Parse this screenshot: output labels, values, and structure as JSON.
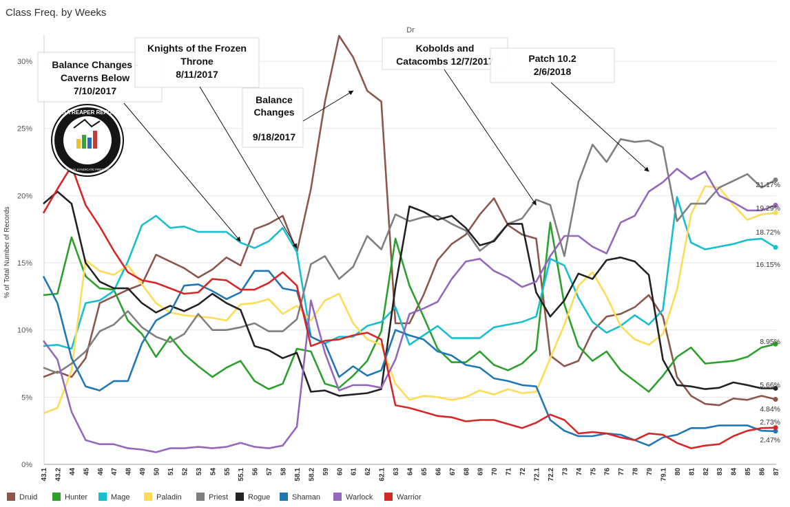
{
  "title": "Class Freq. by Weeks",
  "logo": {
    "text": "DATA REAPER REPORT",
    "subtext": "VICIOUS SYNDICATE PRESENTS"
  },
  "chart_data": {
    "type": "line",
    "title": "Dr",
    "xlabel": "",
    "ylabel": "% of Total Number of Records",
    "ylim": [
      0,
      32
    ],
    "yticks": [
      0,
      5,
      10,
      15,
      20,
      25,
      30
    ],
    "ytick_labels": [
      "0%",
      "5%",
      "10%",
      "15%",
      "20%",
      "25%",
      "30%"
    ],
    "grid": true,
    "legend_position": "bottom",
    "categories": [
      "43.1",
      "43.2",
      "44",
      "45",
      "46",
      "47",
      "48",
      "49",
      "50",
      "51",
      "52",
      "53",
      "54",
      "55",
      "55.1",
      "56",
      "57",
      "58",
      "58.1",
      "58.2",
      "59",
      "60",
      "61",
      "62",
      "62.1",
      "63",
      "64",
      "65",
      "66",
      "67",
      "68",
      "69",
      "70",
      "71",
      "72",
      "72.1",
      "72.2",
      "73",
      "74",
      "75",
      "76",
      "77",
      "78",
      "79",
      "79.1",
      "80",
      "81",
      "82",
      "83",
      "84",
      "85",
      "86",
      "87"
    ],
    "series": [
      {
        "name": "Druid",
        "color": "#8c564b",
        "values": [
          6.5,
          6.9,
          6.5,
          7.9,
          12.0,
          12.5,
          13.0,
          13.4,
          15.6,
          15.1,
          14.6,
          13.9,
          14.5,
          15.4,
          14.8,
          17.5,
          17.9,
          18.5,
          15.8,
          20.5,
          27.0,
          31.9,
          30.3,
          27.8,
          27.0,
          10.5,
          10.5,
          12.6,
          15.2,
          16.4,
          17.1,
          18.6,
          19.8,
          17.8,
          17.1,
          16.8,
          8.1,
          7.3,
          7.7,
          9.9,
          11.0,
          11.2,
          11.7,
          12.6,
          11.0,
          6.5,
          5.1,
          4.5,
          4.4,
          4.9,
          4.8,
          5.1,
          4.84
        ]
      },
      {
        "name": "Hunter",
        "color": "#2ca02c",
        "values": [
          12.6,
          12.7,
          16.9,
          14.0,
          13.1,
          13.0,
          10.7,
          9.7,
          8.0,
          9.5,
          8.2,
          7.3,
          6.5,
          7.2,
          7.7,
          6.2,
          5.6,
          6.0,
          8.6,
          8.4,
          6.0,
          5.7,
          6.6,
          7.7,
          9.9,
          16.8,
          13.3,
          11.0,
          8.6,
          7.6,
          7.6,
          8.4,
          7.4,
          7.0,
          7.5,
          8.5,
          18.0,
          11.9,
          8.8,
          7.7,
          8.4,
          7.0,
          6.2,
          5.4,
          6.6,
          8.0,
          8.7,
          7.5,
          7.6,
          7.7,
          8.0,
          8.7,
          8.95
        ]
      },
      {
        "name": "Mage",
        "color": "#17becf",
        "values": [
          8.8,
          8.9,
          8.6,
          12.0,
          12.2,
          12.9,
          15.1,
          17.8,
          18.5,
          17.6,
          17.7,
          17.3,
          17.3,
          17.3,
          16.5,
          16.1,
          16.6,
          17.6,
          15.8,
          9.5,
          9.0,
          9.5,
          9.5,
          10.3,
          10.6,
          11.7,
          8.9,
          9.6,
          10.3,
          9.4,
          9.4,
          9.4,
          10.2,
          10.4,
          10.6,
          11.0,
          15.3,
          14.8,
          12.4,
          10.6,
          9.8,
          10.3,
          11.1,
          10.4,
          11.5,
          19.9,
          16.5,
          16.0,
          16.2,
          16.4,
          16.7,
          16.8,
          16.15
        ]
      },
      {
        "name": "Paladin",
        "color": "#fedc56",
        "values": [
          3.8,
          4.2,
          7.0,
          15.2,
          14.4,
          14.1,
          14.8,
          13.4,
          12.0,
          11.3,
          11.1,
          11.0,
          10.9,
          10.7,
          11.9,
          12.0,
          12.3,
          11.2,
          11.8,
          10.7,
          12.2,
          12.7,
          10.5,
          9.3,
          8.9,
          6.0,
          4.8,
          5.1,
          5.0,
          4.8,
          5.0,
          5.5,
          5.2,
          5.6,
          5.3,
          5.4,
          7.9,
          10.4,
          13.3,
          14.3,
          12.5,
          10.3,
          9.3,
          8.9,
          9.7,
          13.0,
          18.6,
          20.7,
          20.6,
          19.3,
          18.2,
          18.6,
          18.72
        ]
      },
      {
        "name": "Priest",
        "color": "#7f7f7f",
        "values": [
          7.2,
          6.8,
          7.5,
          8.4,
          9.9,
          10.4,
          11.4,
          10.2,
          9.5,
          9.1,
          9.7,
          11.2,
          10.0,
          10.0,
          10.2,
          10.5,
          9.9,
          9.9,
          10.8,
          14.9,
          15.5,
          13.8,
          14.7,
          17.0,
          16.0,
          18.6,
          18.1,
          18.4,
          18.5,
          17.9,
          17.4,
          15.9,
          16.7,
          17.9,
          18.3,
          19.7,
          19.3,
          15.5,
          21.0,
          23.8,
          22.5,
          24.2,
          24.0,
          24.1,
          23.6,
          18.1,
          19.4,
          19.4,
          20.6,
          21.1,
          21.6,
          20.6,
          21.17
        ]
      },
      {
        "name": "Rogue",
        "color": "#222222",
        "values": [
          19.4,
          20.3,
          19.4,
          15.0,
          13.6,
          13.1,
          13.1,
          12.0,
          11.3,
          11.8,
          11.4,
          11.9,
          12.7,
          12.0,
          11.5,
          8.8,
          8.5,
          7.9,
          8.3,
          5.4,
          5.5,
          5.1,
          5.2,
          5.3,
          5.6,
          13.2,
          19.2,
          18.8,
          18.2,
          18.5,
          17.6,
          16.3,
          16.6,
          17.9,
          17.9,
          12.8,
          11.0,
          12.2,
          14.2,
          13.8,
          15.2,
          15.4,
          15.1,
          14.1,
          7.8,
          5.9,
          5.8,
          5.6,
          5.7,
          6.1,
          5.9,
          5.66,
          5.66
        ]
      },
      {
        "name": "Shaman",
        "color": "#1f77b4",
        "values": [
          14.0,
          12.0,
          7.9,
          5.8,
          5.5,
          6.2,
          6.2,
          9.0,
          10.7,
          11.3,
          13.3,
          13.4,
          12.9,
          12.3,
          12.8,
          14.4,
          14.4,
          13.1,
          12.9,
          9.5,
          9.0,
          6.5,
          7.3,
          6.6,
          7.0,
          10.0,
          9.6,
          9.3,
          8.4,
          8.1,
          7.4,
          7.2,
          6.4,
          6.2,
          5.9,
          5.8,
          3.3,
          2.5,
          2.1,
          2.1,
          2.3,
          2.2,
          1.8,
          1.4,
          2.0,
          2.2,
          2.7,
          2.7,
          2.9,
          2.9,
          2.9,
          2.5,
          2.47
        ]
      },
      {
        "name": "Warlock",
        "color": "#9467bd",
        "values": [
          9.2,
          7.8,
          3.9,
          1.8,
          1.5,
          1.5,
          1.2,
          1.1,
          0.9,
          1.2,
          1.2,
          1.3,
          1.2,
          1.3,
          1.6,
          1.3,
          1.2,
          1.4,
          2.8,
          12.2,
          8.3,
          5.5,
          5.9,
          5.9,
          5.7,
          7.8,
          11.2,
          11.6,
          12.1,
          13.8,
          15.1,
          15.3,
          14.4,
          13.9,
          13.2,
          13.6,
          15.5,
          17.0,
          17.0,
          16.2,
          15.7,
          18.0,
          18.5,
          20.3,
          21.0,
          22.0,
          21.2,
          21.8,
          20.0,
          19.5,
          18.9,
          18.9,
          19.29
        ]
      },
      {
        "name": "Warrior",
        "color": "#d62728",
        "values": [
          18.7,
          20.5,
          22.2,
          19.3,
          17.7,
          15.9,
          14.3,
          13.7,
          13.5,
          13.1,
          12.7,
          12.8,
          13.8,
          13.7,
          13.0,
          13.0,
          13.5,
          14.3,
          13.3,
          8.8,
          9.2,
          9.3,
          9.6,
          9.8,
          9.3,
          4.4,
          4.2,
          3.9,
          3.6,
          3.5,
          3.2,
          3.3,
          3.3,
          3.0,
          2.7,
          3.1,
          3.7,
          3.3,
          2.3,
          2.4,
          2.3,
          2.0,
          1.8,
          2.3,
          2.2,
          1.6,
          1.2,
          1.4,
          1.5,
          2.1,
          2.5,
          2.7,
          2.73
        ]
      }
    ],
    "end_labels": [
      {
        "series": "Priest",
        "text": "21.17%"
      },
      {
        "series": "Warlock",
        "text": "19.29%"
      },
      {
        "series": "Paladin",
        "text": "18.72%"
      },
      {
        "series": "Mage",
        "text": "16.15%"
      },
      {
        "series": "Hunter",
        "text": "8.95%"
      },
      {
        "series": "Rogue",
        "text": "5.66%"
      },
      {
        "series": "Druid",
        "text": "4.84%"
      },
      {
        "series": "Warrior",
        "text": "2.73%"
      },
      {
        "series": "Shaman",
        "text": "2.47%"
      }
    ],
    "annotations": [
      {
        "lines": [
          "Balance Changes -",
          "Caverns Below",
          "7/10/2017"
        ],
        "target_category": "55.1",
        "target_value": 16.6
      },
      {
        "lines": [
          "Knights of the Frozen",
          "Throne",
          "8/11/2017"
        ],
        "target_category": "58.1",
        "target_value": 16.1
      },
      {
        "lines": [
          "Balance",
          "Changes",
          "",
          "9/18/2017"
        ],
        "target_category": "61",
        "target_value": 27.8
      },
      {
        "lines": [
          "Kobolds and",
          "Catacombs 12/7/2017"
        ],
        "target_category": "72.1",
        "target_value": 19.3
      },
      {
        "lines": [
          "Patch 10.2",
          "2/6/2018"
        ],
        "target_category": "79",
        "target_value": 21.8
      }
    ]
  }
}
